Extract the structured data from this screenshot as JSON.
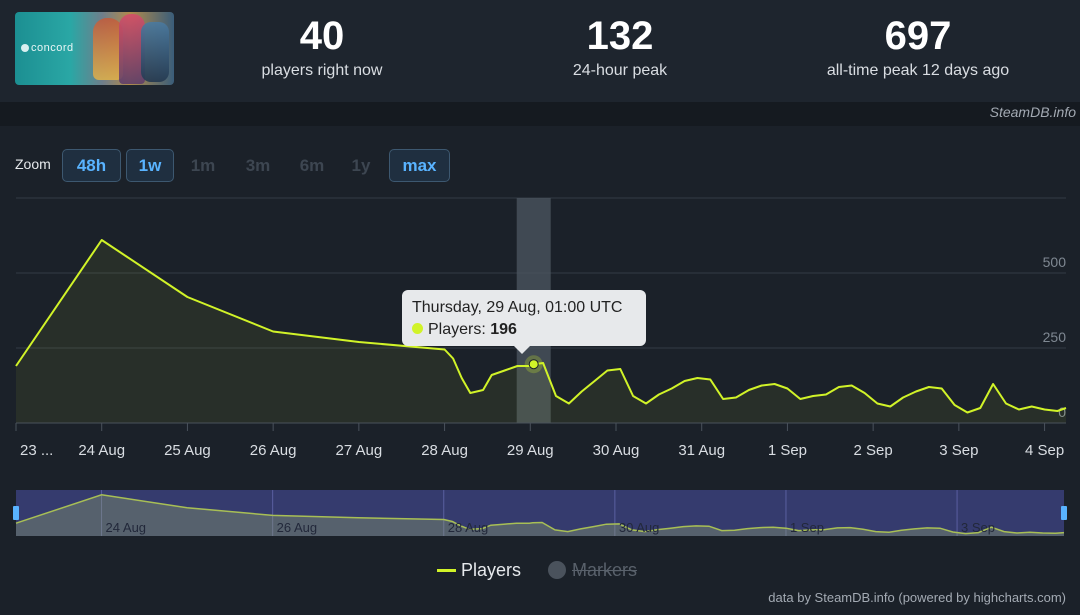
{
  "game": {
    "name": "concord"
  },
  "stats": [
    {
      "value": "40",
      "label": "players right now"
    },
    {
      "value": "132",
      "label": "24-hour peak"
    },
    {
      "value": "697",
      "label": "all-time peak 12 days ago"
    }
  ],
  "credit_top": "SteamDB.info",
  "zoom": {
    "label": "Zoom",
    "buttons": [
      {
        "label": "48h",
        "active": true
      },
      {
        "label": "1w",
        "active": true
      },
      {
        "label": "1m",
        "active": false
      },
      {
        "label": "3m",
        "active": false
      },
      {
        "label": "6m",
        "active": false
      },
      {
        "label": "1y",
        "active": false
      },
      {
        "label": "max",
        "active": true
      }
    ]
  },
  "tooltip": {
    "date": "Thursday, 29 Aug, 01:00 UTC",
    "series_label": "Players: ",
    "value": "196"
  },
  "legend": {
    "players": "Players",
    "markers": "Markers"
  },
  "credit_bottom": "data by SteamDB.info (powered by highcharts.com)",
  "colors": {
    "line": "#d1f328",
    "background": "#1b2129",
    "navigator_selection": "#3a3f7a",
    "link": "#59b3ff"
  },
  "chart_data": {
    "type": "line",
    "title": "",
    "xlabel": "",
    "ylabel": "",
    "x_tick_labels": [
      "23 ...",
      "24 Aug",
      "25 Aug",
      "26 Aug",
      "27 Aug",
      "28 Aug",
      "29 Aug",
      "30 Aug",
      "31 Aug",
      "1 Sep",
      "2 Sep",
      "3 Sep",
      "4 Sep"
    ],
    "y_ticks": [
      0,
      250,
      500
    ],
    "ylim": [
      0,
      750
    ],
    "xlim_days": [
      23.0,
      35.25
    ],
    "navigator_tick_labels": [
      "24 Aug",
      "26 Aug",
      "28 Aug",
      "30 Aug",
      "1 Sep",
      "3 Sep"
    ],
    "highlight_point": {
      "x": "29 Aug 01:00",
      "y": 196
    },
    "series": [
      {
        "name": "Players",
        "x_days": [
          23.0,
          24.0,
          25.0,
          26.0,
          27.0,
          28.0,
          28.1,
          28.2,
          28.3,
          28.45,
          28.55,
          28.7,
          28.85,
          29.0,
          29.04,
          29.15,
          29.3,
          29.45,
          29.6,
          29.75,
          29.9,
          30.05,
          30.2,
          30.35,
          30.5,
          30.65,
          30.8,
          30.95,
          31.1,
          31.25,
          31.4,
          31.55,
          31.7,
          31.85,
          32.0,
          32.15,
          32.3,
          32.45,
          32.6,
          32.75,
          32.9,
          33.05,
          33.2,
          33.35,
          33.5,
          33.65,
          33.8,
          33.95,
          34.1,
          34.25,
          34.4,
          34.55,
          34.7,
          34.85,
          35.0,
          35.15,
          35.25
        ],
        "values": [
          190,
          610,
          420,
          305,
          270,
          245,
          215,
          150,
          100,
          110,
          160,
          175,
          190,
          190,
          196,
          200,
          90,
          65,
          105,
          140,
          175,
          180,
          90,
          65,
          95,
          115,
          140,
          150,
          145,
          80,
          85,
          110,
          125,
          130,
          115,
          80,
          90,
          95,
          120,
          125,
          100,
          65,
          55,
          85,
          105,
          120,
          115,
          60,
          35,
          50,
          130,
          65,
          45,
          55,
          45,
          40,
          50
        ]
      }
    ]
  }
}
